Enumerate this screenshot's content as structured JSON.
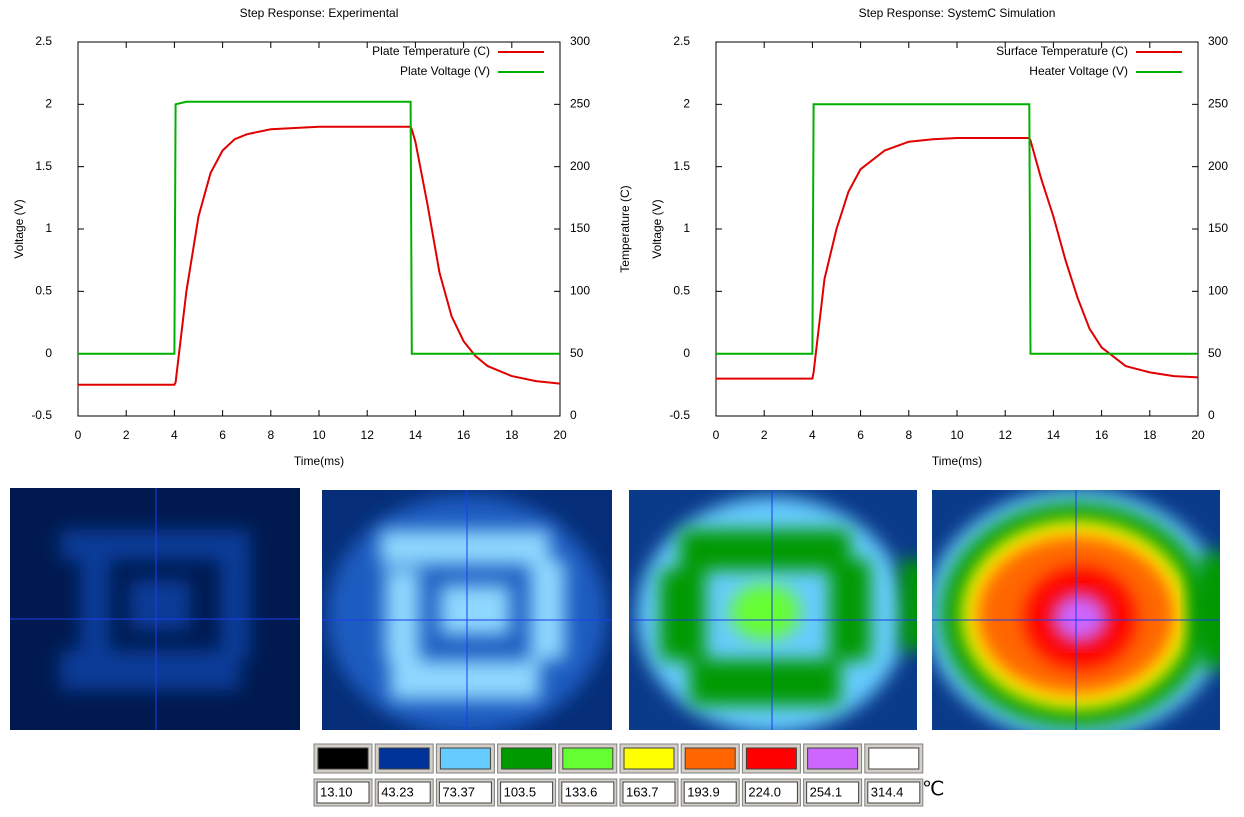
{
  "chart_data": [
    {
      "type": "line",
      "title": "Step Response: Experimental",
      "xlabel": "Time(ms)",
      "ylabel": "Voltage (V)",
      "y2label": "Temperature (C)",
      "x": [
        0,
        1,
        2,
        3,
        4,
        4.05,
        4.5,
        5,
        5.5,
        6,
        6.5,
        7,
        8,
        9,
        10,
        11,
        12,
        13,
        13.8,
        13.85,
        14,
        14.5,
        15,
        15.5,
        16,
        16.5,
        17,
        18,
        19,
        20
      ],
      "series": [
        {
          "name": "Plate Temperature (C)",
          "color": "#e00000",
          "axis": "y2",
          "values": [
            25,
            25,
            25,
            25,
            25,
            27,
            100,
            160,
            195,
            213,
            222,
            226,
            230,
            231,
            232,
            232,
            232,
            232,
            232,
            230,
            220,
            170,
            115,
            80,
            60,
            48,
            40,
            32,
            28,
            26
          ]
        },
        {
          "name": "Plate Voltage (V)",
          "color": "#00b000",
          "values": [
            0,
            0,
            0,
            0,
            0,
            2,
            2.02,
            2.02,
            2.02,
            2.02,
            2.02,
            2.02,
            2.02,
            2.02,
            2.02,
            2.02,
            2.02,
            2.02,
            2.02,
            0,
            0,
            0,
            0,
            0,
            0,
            0,
            0,
            0,
            0,
            0
          ]
        }
      ],
      "xlim": [
        0,
        20
      ],
      "xticks": [
        0,
        2,
        4,
        6,
        8,
        10,
        12,
        14,
        16,
        18,
        20
      ],
      "ylim": [
        -0.5,
        2.5
      ],
      "yticks": [
        -0.5,
        0,
        0.5,
        1,
        1.5,
        2,
        2.5
      ],
      "y2lim": [
        0,
        300
      ],
      "y2ticks": [
        0,
        50,
        100,
        150,
        200,
        250,
        300
      ],
      "legend": "upper right",
      "grid": false
    },
    {
      "type": "line",
      "title": "Step Response: SystemC Simulation",
      "xlabel": "Time(ms)",
      "ylabel": "Voltage (V)",
      "x": [
        0,
        1,
        2,
        3,
        4,
        4.05,
        4.5,
        5,
        5.5,
        6,
        7,
        8,
        9,
        10,
        11,
        12,
        13,
        13.05,
        13.5,
        14,
        14.5,
        15,
        15.5,
        16,
        17,
        18,
        19,
        20
      ],
      "series": [
        {
          "name": "Surface Temperature (C)",
          "color": "#e00000",
          "axis": "y2",
          "values": [
            30,
            30,
            30,
            30,
            30,
            35,
            110,
            150,
            180,
            198,
            213,
            220,
            222,
            223,
            223,
            223,
            223,
            221,
            190,
            160,
            125,
            95,
            70,
            55,
            40,
            35,
            32,
            31
          ]
        },
        {
          "name": "Heater Voltage (V)",
          "color": "#00b000",
          "values": [
            0,
            0,
            0,
            0,
            0,
            2,
            2,
            2,
            2,
            2,
            2,
            2,
            2,
            2,
            2,
            2,
            2,
            0,
            0,
            0,
            0,
            0,
            0,
            0,
            0,
            0,
            0,
            0
          ]
        }
      ],
      "xlim": [
        0,
        20
      ],
      "xticks": [
        0,
        2,
        4,
        6,
        8,
        10,
        12,
        14,
        16,
        18,
        20
      ],
      "ylim": [
        -0.5,
        2.5
      ],
      "yticks": [
        -0.5,
        0,
        0.5,
        1,
        1.5,
        2,
        2.5
      ],
      "y2lim": [
        0,
        300
      ],
      "y2ticks": [
        0,
        50,
        100,
        150,
        200,
        250,
        300
      ],
      "legend": "upper right",
      "grid": false
    }
  ],
  "color_scale": {
    "colors": [
      "#000000",
      "#003399",
      "#66ccff",
      "#009900",
      "#66ff33",
      "#ffff00",
      "#ff6600",
      "#ff0000",
      "#cc66ff",
      "#ffffff"
    ],
    "labels": [
      "13.10",
      "43.23",
      "73.37",
      "103.5",
      "133.6",
      "163.7",
      "193.9",
      "224.0",
      "254.1",
      "314.4"
    ],
    "unit": "℃"
  }
}
